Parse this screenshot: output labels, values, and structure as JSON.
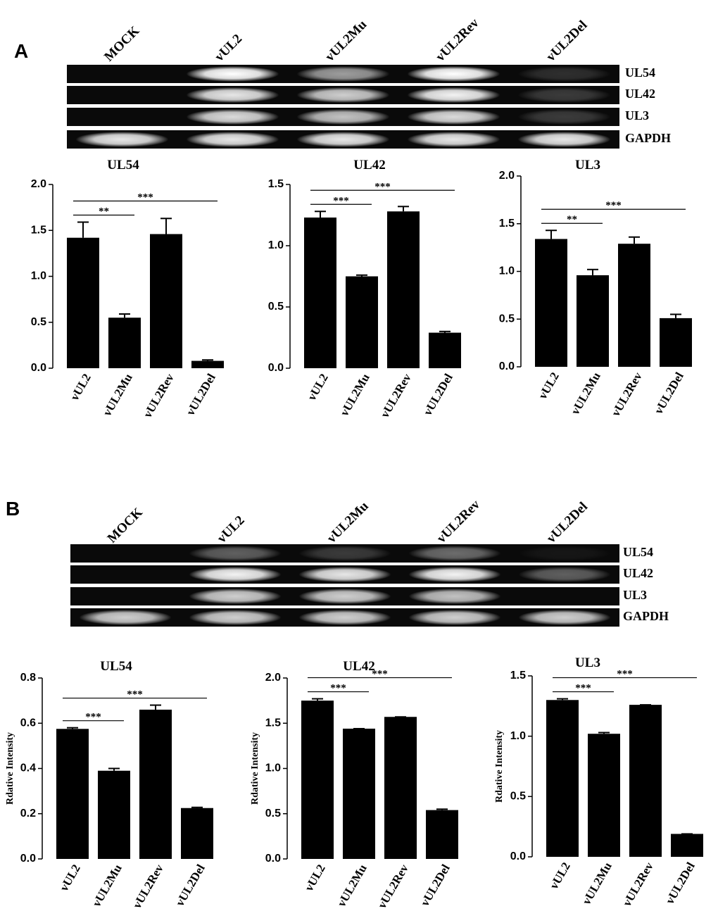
{
  "panels": [
    {
      "label": "A",
      "lanes": [
        "MOCK",
        "vUL2",
        "vUL2Mu",
        "vUL2Rev",
        "vUL2Del"
      ],
      "genes": [
        "UL54",
        "UL42",
        "UL3",
        "GAPDH"
      ]
    },
    {
      "label": "B",
      "lanes": [
        "MOCK",
        "vUL2",
        "vUL2Mu",
        "vUL2Rev",
        "vUL2Del"
      ],
      "genes": [
        "UL54",
        "UL42",
        "UL3",
        "GAPDH"
      ]
    }
  ],
  "chart_data": [
    {
      "type": "bar",
      "title": "UL54",
      "categories": [
        "vUL2",
        "vUL2Mu",
        "vUL2Rev",
        "vUL2Del"
      ],
      "values": [
        1.42,
        0.55,
        1.46,
        0.08
      ],
      "errors": [
        0.17,
        0.04,
        0.17,
        0.01
      ],
      "color": "#000000",
      "ylim": [
        0,
        2
      ],
      "yticks": [
        {
          "value": 0,
          "label": "0.0"
        },
        {
          "value": 0.5,
          "label": "0.5"
        },
        {
          "value": 1,
          "label": "1.0"
        },
        {
          "value": 1.5,
          "label": "1.5"
        },
        {
          "value": 2,
          "label": "2.0"
        }
      ],
      "annotations": [
        {
          "text": "**",
          "between": [
            "vUL2",
            "vUL2Mu"
          ]
        },
        {
          "text": "***",
          "between": [
            "vUL2",
            "vUL2Del"
          ]
        }
      ]
    },
    {
      "type": "bar",
      "title": "UL42",
      "categories": [
        "vUL2",
        "vUL2Mu",
        "vUL2Rev",
        "vUL2Del"
      ],
      "values": [
        1.23,
        0.75,
        1.28,
        0.29
      ],
      "errors": [
        0.05,
        0.01,
        0.04,
        0.01
      ],
      "color": "#000000",
      "ylim": [
        0,
        1.5
      ],
      "yticks": [
        {
          "value": 0,
          "label": "0.0"
        },
        {
          "value": 0.5,
          "label": "0.5"
        },
        {
          "value": 1,
          "label": "1.0"
        },
        {
          "value": 1.5,
          "label": "1.5"
        }
      ],
      "annotations": [
        {
          "text": "***",
          "between": [
            "vUL2",
            "vUL2Mu"
          ]
        },
        {
          "text": "***",
          "between": [
            "vUL2",
            "vUL2Del"
          ]
        }
      ]
    },
    {
      "type": "bar",
      "title": "UL3",
      "categories": [
        "vUL2",
        "vUL2Mu",
        "vUL2Rev",
        "vUL2Del"
      ],
      "values": [
        1.34,
        0.96,
        1.29,
        0.51
      ],
      "errors": [
        0.09,
        0.06,
        0.07,
        0.04
      ],
      "color": "#000000",
      "ylim": [
        0,
        2
      ],
      "yticks": [
        {
          "value": 0,
          "label": "0.0"
        },
        {
          "value": 0.5,
          "label": "0.5"
        },
        {
          "value": 1,
          "label": "1.0"
        },
        {
          "value": 1.5,
          "label": "1.5"
        },
        {
          "value": 2,
          "label": "2.0"
        }
      ],
      "annotations": [
        {
          "text": "**",
          "between": [
            "vUL2",
            "vUL2Mu"
          ]
        },
        {
          "text": "***",
          "between": [
            "vUL2",
            "vUL2Del"
          ]
        }
      ]
    },
    {
      "type": "bar",
      "title": "UL54",
      "ylabel": "Rdative Intensity",
      "categories": [
        "vUL2",
        "vUL2Mu",
        "vUL2Rev",
        "vUL2Del"
      ],
      "values": [
        0.575,
        0.39,
        0.66,
        0.225
      ],
      "errors": [
        0.005,
        0.01,
        0.02,
        0.003
      ],
      "color": "#000000",
      "ylim": [
        0,
        0.8
      ],
      "yticks": [
        {
          "value": 0,
          "label": "0.0"
        },
        0.2,
        0.4,
        0.6,
        0.8
      ],
      "annotations": [
        {
          "text": "***",
          "between": [
            "vUL2",
            "vUL2Mu"
          ]
        },
        {
          "text": "***",
          "between": [
            "vUL2",
            "vUL2Del"
          ]
        }
      ]
    },
    {
      "type": "bar",
      "title": "UL42",
      "ylabel": "Rdative Intensity",
      "categories": [
        "vUL2",
        "vUL2Mu",
        "vUL2Rev",
        "vUL2Del"
      ],
      "values": [
        1.75,
        1.44,
        1.57,
        0.54
      ],
      "errors": [
        0.02,
        0,
        0,
        0.01
      ],
      "color": "#000000",
      "ylim": [
        0,
        2
      ],
      "yticks": [
        {
          "value": 0,
          "label": "0.0"
        },
        0.5,
        {
          "value": 1,
          "label": "1.0"
        },
        1.5,
        {
          "value": 2,
          "label": "2.0"
        }
      ],
      "annotations": [
        {
          "text": "***",
          "between": [
            "vUL2",
            "vUL2Mu"
          ]
        },
        {
          "text": "***",
          "between": [
            "vUL2",
            "vUL2Del"
          ]
        }
      ]
    },
    {
      "type": "bar",
      "title": "UL3",
      "ylabel": "Rdative Intensity",
      "categories": [
        "vUL2",
        "vUL2Mu",
        "vUL2Rev",
        "vUL2Del"
      ],
      "values": [
        1.3,
        1.02,
        1.26,
        0.19
      ],
      "errors": [
        0.01,
        0.01,
        0,
        0
      ],
      "color": "#000000",
      "ylim": [
        0,
        1.5
      ],
      "yticks": [
        {
          "value": 0,
          "label": "0.0"
        },
        0.5,
        {
          "value": 1,
          "label": "1.0"
        },
        1.5
      ],
      "annotations": [
        {
          "text": "***",
          "between": [
            "vUL2",
            "vUL2Mu"
          ]
        },
        {
          "text": "***",
          "between": [
            "vUL2",
            "vUL2Del"
          ]
        }
      ]
    }
  ]
}
